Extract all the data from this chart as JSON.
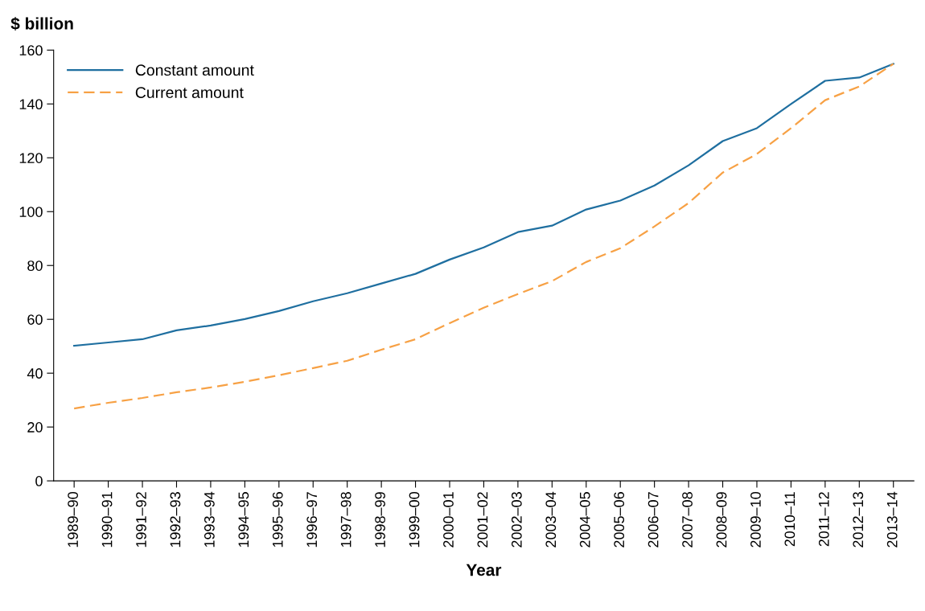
{
  "chart_data": {
    "type": "line",
    "ylabel": "$ billion",
    "xlabel": "Year",
    "categories": [
      "1989–90",
      "1990–91",
      "1991–92",
      "1992–93",
      "1993–94",
      "1994–95",
      "1995–96",
      "1996–97",
      "1997–98",
      "1998–99",
      "1999–00",
      "2000–01",
      "2001–02",
      "2002–03",
      "2003–04",
      "2004–05",
      "2005–06",
      "2006–07",
      "2007–08",
      "2008–09",
      "2009–10",
      "2010–11",
      "2011–12",
      "2012–13",
      "2013–14"
    ],
    "series": [
      {
        "name": "Constant amount",
        "color": "#1f6fa0",
        "line_style": "solid",
        "values": [
          50.2,
          51.4,
          52.6,
          55.9,
          57.7,
          60.1,
          63.1,
          66.7,
          69.7,
          73.3,
          76.9,
          82.2,
          86.7,
          92.4,
          94.8,
          100.8,
          104.1,
          109.7,
          117.2,
          126.2,
          131.0,
          140.0,
          148.6,
          149.8,
          154.9
        ]
      },
      {
        "name": "Current amount",
        "color": "#f7a145",
        "line_style": "dashed",
        "values": [
          26.9,
          29.0,
          30.8,
          32.9,
          34.7,
          36.8,
          39.2,
          41.9,
          44.6,
          48.7,
          52.6,
          58.6,
          64.3,
          69.4,
          74.2,
          81.3,
          86.4,
          94.5,
          103.2,
          114.5,
          121.4,
          131.0,
          141.4,
          146.5,
          154.9
        ]
      }
    ],
    "ylim": [
      0,
      160
    ],
    "yticks": [
      0,
      20,
      40,
      60,
      80,
      100,
      120,
      140,
      160
    ],
    "grid": false,
    "legend": "top left"
  }
}
